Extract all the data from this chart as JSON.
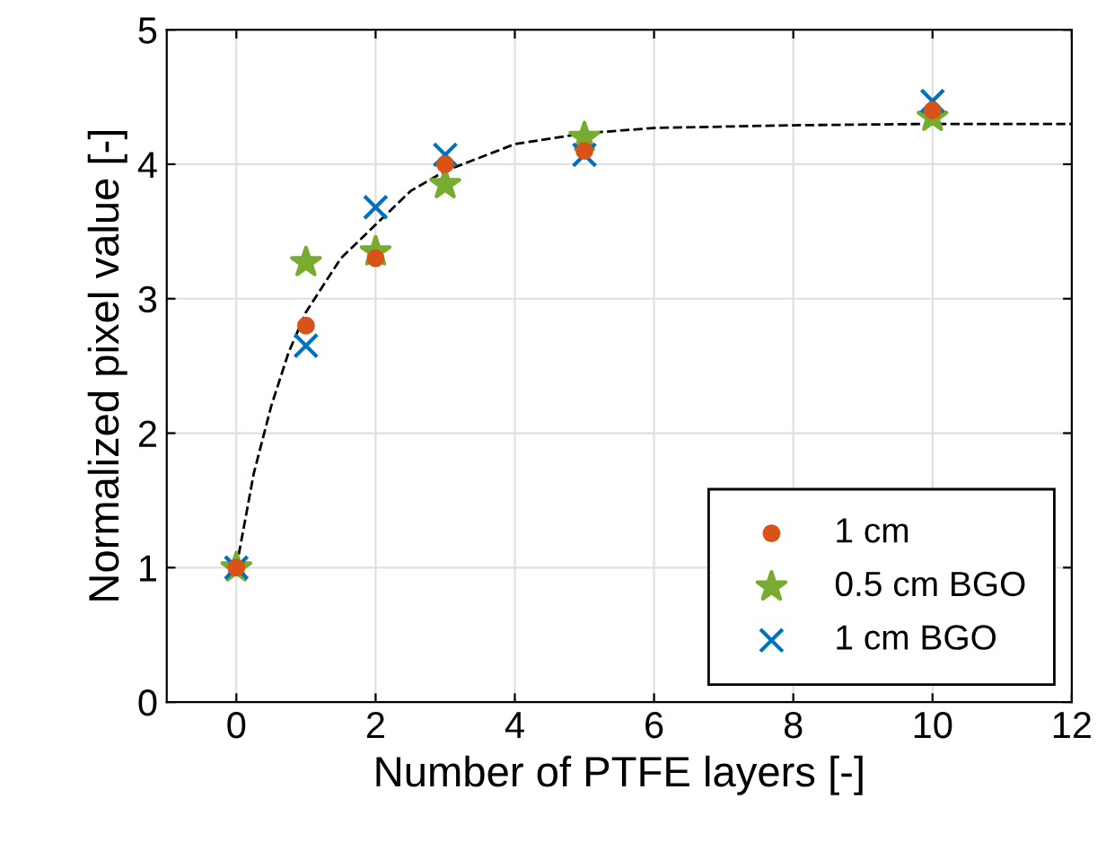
{
  "chart_data": {
    "type": "scatter",
    "xlabel": "Number of PTFE layers [-]",
    "ylabel": "Normalized pixel value [-]",
    "xlim": [
      -1,
      12
    ],
    "xticks": [
      0,
      2,
      4,
      6,
      8,
      10,
      12
    ],
    "ylim": [
      0,
      5
    ],
    "yticks": [
      0,
      1,
      2,
      3,
      4,
      5
    ],
    "grid": true,
    "legend": "bottom right",
    "x": [
      0,
      1,
      2,
      3,
      5,
      10
    ],
    "series": [
      {
        "name": "1 cm",
        "color": "#d95319",
        "marker": "circle",
        "values": [
          1,
          2.8,
          3.3,
          4.0,
          4.1,
          4.4
        ]
      },
      {
        "name": "0.5 cm BGO",
        "color": "#77ac30",
        "marker": "star",
        "values": [
          1,
          3.27,
          3.35,
          3.85,
          4.2,
          4.35
        ]
      },
      {
        "name": "1 cm BGO",
        "color": "#0072bd",
        "marker": "cross",
        "values": [
          1,
          2.65,
          3.68,
          4.07,
          4.07,
          4.47
        ]
      },
      {
        "type": "line",
        "color": "#000000",
        "line_style": "dashed",
        "marker": "none",
        "x": [
          0,
          0.25,
          0.5,
          0.75,
          1,
          1.5,
          2,
          2.5,
          3,
          4,
          5,
          6,
          8,
          10,
          12
        ],
        "values": [
          1,
          1.7,
          2.2,
          2.6,
          2.9,
          3.3,
          3.55,
          3.8,
          3.95,
          4.15,
          4.23,
          4.27,
          4.29,
          4.3,
          4.3
        ]
      }
    ]
  }
}
